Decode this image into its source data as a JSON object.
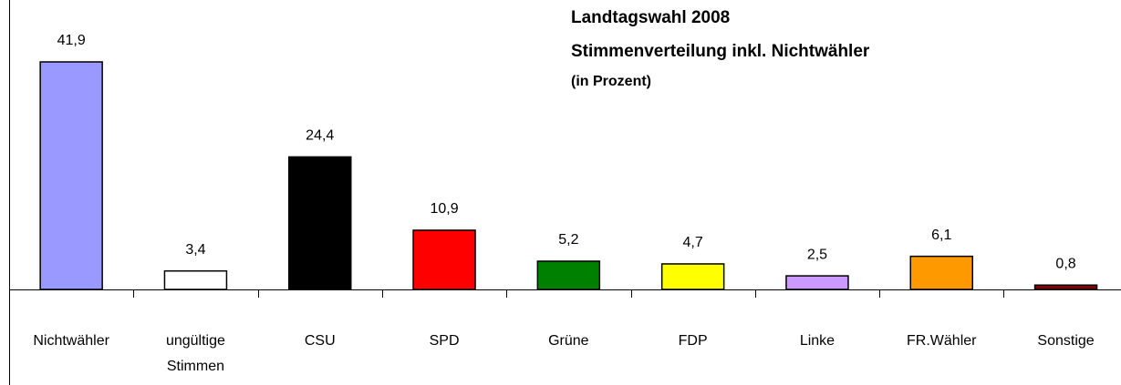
{
  "chart_data": {
    "type": "bar",
    "title": "Landtagswahl 2008",
    "subtitle": "Stimmenverteilung inkl. Nichtwähler",
    "unit_note": "(in Prozent)",
    "categories": [
      "Nichtwähler",
      "ungültige Stimmen",
      "CSU",
      "SPD",
      "Grüne",
      "FDP",
      "Linke",
      "FR.Wähler",
      "Sonstige"
    ],
    "values": [
      41.9,
      3.4,
      24.4,
      10.9,
      5.2,
      4.7,
      2.5,
      6.1,
      0.8
    ],
    "value_labels": [
      "41,9",
      "3,4",
      "24,4",
      "10,9",
      "5,2",
      "4,7",
      "2,5",
      "6,1",
      "0,8"
    ],
    "colors": [
      "#9999ff",
      "#ffffff",
      "#000000",
      "#ff0000",
      "#008000",
      "#ffff00",
      "#cc99ff",
      "#ff9900",
      "#800000"
    ]
  }
}
